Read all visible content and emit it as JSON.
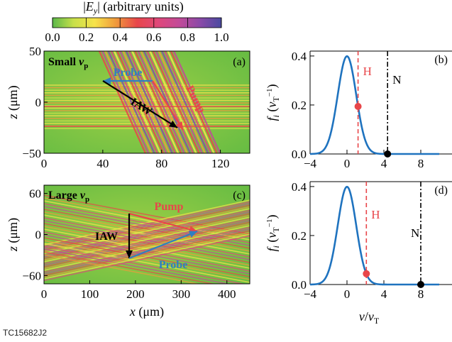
{
  "colorbar": {
    "title": "|E_y| (arbitrary units)",
    "ticks": [
      "0.0",
      "0.2",
      "0.4",
      "0.6",
      "0.8",
      "1.0"
    ],
    "colors": [
      "#5bb84a",
      "#c8e04a",
      "#f7e34a",
      "#f09a3c",
      "#e8464a",
      "#e0487a",
      "#c24a98",
      "#8a4aa8",
      "#4a4aa0"
    ]
  },
  "chart_data": [
    {
      "id": "a",
      "type": "heatmap",
      "panel_label": "(a)",
      "title": "Small v_p",
      "xlabel": "",
      "ylabel": "z (μm)",
      "xlim": [
        0,
        140
      ],
      "ylim": [
        -50,
        50
      ],
      "xticks": [
        "0",
        "40",
        "80",
        "120"
      ],
      "yticks": [
        "50",
        "0",
        "−50"
      ],
      "annotations": [
        {
          "text": "Probe",
          "color": "#2f7fc1"
        },
        {
          "text": "Pump",
          "color": "#e8464a"
        },
        {
          "text": "IAW",
          "color": "#000000"
        }
      ]
    },
    {
      "id": "b",
      "type": "line",
      "panel_label": "(b)",
      "xlabel": "",
      "ylabel": "f_i (v_T^-1)",
      "xlim": [
        -4,
        10
      ],
      "ylim": [
        0,
        0.42
      ],
      "xticks": [
        "−4",
        "0",
        "4",
        "8"
      ],
      "yticks": [
        "0.4",
        "0.2",
        "0.0"
      ],
      "series": [
        {
          "x": [
            -4,
            -3,
            -2,
            -1.5,
            -1,
            -0.5,
            0,
            0.5,
            1,
            1.5,
            2,
            3,
            4,
            6,
            10
          ],
          "y": [
            0.0001,
            0.004,
            0.054,
            0.13,
            0.242,
            0.352,
            0.399,
            0.352,
            0.242,
            0.13,
            0.054,
            0.004,
            0.0001,
            0,
            0
          ],
          "color": "#1f73bf"
        }
      ],
      "vlines": [
        {
          "label": "H",
          "x": 1.2,
          "color": "#e8464a",
          "style": "dashed",
          "marker_y": 0.194
        },
        {
          "label": "N",
          "x": 4.4,
          "color": "#000000",
          "style": "dashdot",
          "marker_y": 0.0
        }
      ]
    },
    {
      "id": "c",
      "type": "heatmap",
      "panel_label": "(c)",
      "title": "Large v_p",
      "xlabel": "x (μm)",
      "ylabel": "z (μm)",
      "xlim": [
        0,
        450
      ],
      "ylim": [
        -72,
        72
      ],
      "xticks": [
        "0",
        "100",
        "200",
        "300",
        "400"
      ],
      "yticks": [
        "60",
        "0",
        "−60"
      ],
      "annotations": [
        {
          "text": "Pump",
          "color": "#e8464a"
        },
        {
          "text": "IAW",
          "color": "#000000"
        },
        {
          "text": "Probe",
          "color": "#2f7fc1"
        }
      ]
    },
    {
      "id": "d",
      "type": "line",
      "panel_label": "(d)",
      "xlabel": "v/v_T",
      "ylabel": "f_i (v_T^-1)",
      "xlim": [
        -4,
        10
      ],
      "ylim": [
        0,
        0.42
      ],
      "xticks": [
        "−4",
        "0",
        "4",
        "8"
      ],
      "yticks": [
        "0.4",
        "0.2",
        "0.0"
      ],
      "series": [
        {
          "x": [
            -4,
            -3,
            -2,
            -1.5,
            -1,
            -0.5,
            0,
            0.5,
            1,
            1.5,
            2,
            3,
            4,
            6,
            10
          ],
          "y": [
            0.0001,
            0.004,
            0.054,
            0.13,
            0.242,
            0.352,
            0.399,
            0.352,
            0.242,
            0.13,
            0.054,
            0.004,
            0.0001,
            0,
            0
          ],
          "color": "#1f73bf"
        }
      ],
      "vlines": [
        {
          "label": "H",
          "x": 2.1,
          "color": "#e8464a",
          "style": "dashed",
          "marker_y": 0.044
        },
        {
          "label": "N",
          "x": 8.0,
          "color": "#000000",
          "style": "dashdot",
          "marker_y": 0.0
        }
      ]
    }
  ],
  "footer": "TC15682J2"
}
